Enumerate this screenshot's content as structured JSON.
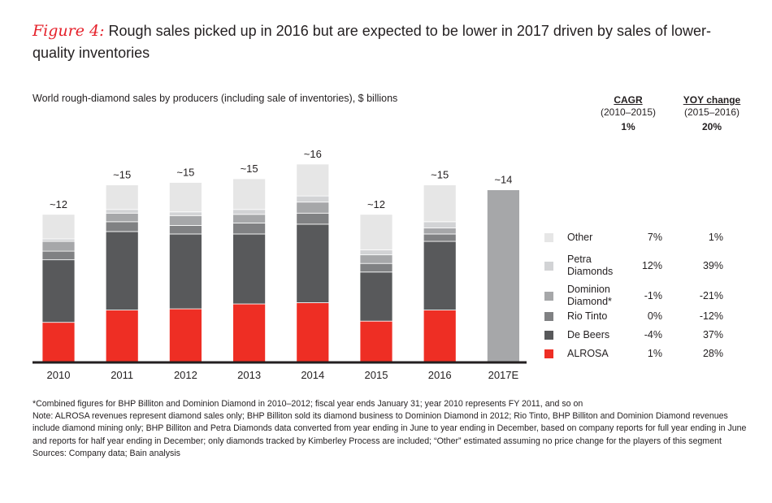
{
  "title": {
    "figure_label": "Figure 4:",
    "text": "Rough sales picked up in 2016 but are expected to be lower in 2017 driven by sales of lower-quality inventories"
  },
  "headers": {
    "cagr": {
      "title": "CAGR",
      "period": "(2010–2015)",
      "total": "1%"
    },
    "yoy": {
      "title": "YOY change",
      "period": "(2015–2016)",
      "total": "20%"
    }
  },
  "legend": [
    {
      "label_lines": [
        "Other"
      ],
      "cagr": "7%",
      "yoy": "1%",
      "color": "#e6e6e6"
    },
    {
      "label_lines": [
        "Petra",
        "Diamonds"
      ],
      "cagr": "12%",
      "yoy": "39%",
      "color": "#d2d3d5"
    },
    {
      "label_lines": [
        "Dominion",
        "Diamond*"
      ],
      "cagr": "-1%",
      "yoy": "-21%",
      "color": "#a6a7a9"
    },
    {
      "label_lines": [
        "Rio Tinto"
      ],
      "cagr": "0%",
      "yoy": "-12%",
      "color": "#808183"
    },
    {
      "label_lines": [
        "De Beers"
      ],
      "cagr": "-4%",
      "yoy": "37%",
      "color": "#58595b"
    },
    {
      "label_lines": [
        "ALROSA"
      ],
      "cagr": "1%",
      "yoy": "28%",
      "color": "#ee2e24"
    }
  ],
  "footnotes": {
    "asterisk": "*Combined figures for BHP Billiton and Dominion Diamond in 2010–2012; fiscal year ends January 31; year 2010 represents FY 2011, and so on",
    "note": "Note: ALROSA revenues represent diamond sales only; BHP Billiton sold its diamond business to Dominion Diamond in 2012; Rio Tinto, BHP Billiton and Dominion Diamond revenues include diamond mining only; BHP Billiton and Petra Diamonds data converted from year ending in June to year ending in December, based on company reports for full year ending in June and reports for half year ending in December; only diamonds tracked by Kimberley Process are included; “Other” estimated assuming no price change for the players of this segment",
    "sources": "Sources: Company data; Bain analysis"
  },
  "chart_data": {
    "type": "bar",
    "stacked": true,
    "title": "Rough sales picked up in 2016 but are expected to be lower in 2017 driven by sales of lower-quality inventories",
    "subtitle": "World rough-diamond sales by producers (including sale of inventories), $ billions",
    "xlabel": "",
    "ylabel": "$ billions",
    "ylim": [
      0,
      16.5
    ],
    "grid": false,
    "legend_position": "right",
    "categories": [
      "2010",
      "2011",
      "2012",
      "2013",
      "2014",
      "2015",
      "2016",
      "2017E"
    ],
    "total_labels": [
      "~12",
      "~15",
      "~15",
      "~15",
      "~16",
      "~12",
      "~15",
      "~14"
    ],
    "series": [
      {
        "name": "ALROSA",
        "color": "#ee2e24",
        "values": [
          3.2,
          4.2,
          4.3,
          4.7,
          4.8,
          3.3,
          4.2,
          null
        ]
      },
      {
        "name": "De Beers",
        "color": "#58595b",
        "values": [
          5.1,
          6.4,
          6.1,
          5.7,
          6.4,
          4.0,
          5.6,
          null
        ]
      },
      {
        "name": "Rio Tinto",
        "color": "#808183",
        "values": [
          0.7,
          0.8,
          0.7,
          0.9,
          0.9,
          0.7,
          0.6,
          null
        ]
      },
      {
        "name": "Dominion Diamond*",
        "color": "#a6a7a9",
        "values": [
          0.8,
          0.7,
          0.8,
          0.7,
          0.9,
          0.7,
          0.5,
          null
        ]
      },
      {
        "name": "Petra Diamonds",
        "color": "#d2d3d5",
        "values": [
          0.2,
          0.3,
          0.3,
          0.4,
          0.5,
          0.4,
          0.5,
          null
        ]
      },
      {
        "name": "Other",
        "color": "#e6e6e6",
        "values": [
          2.0,
          2.0,
          2.4,
          2.5,
          2.6,
          2.9,
          3.0,
          null
        ]
      },
      {
        "name": "Total (estimate)",
        "color": "#a6a7a9",
        "values": [
          null,
          null,
          null,
          null,
          null,
          null,
          null,
          14.0
        ]
      }
    ]
  }
}
